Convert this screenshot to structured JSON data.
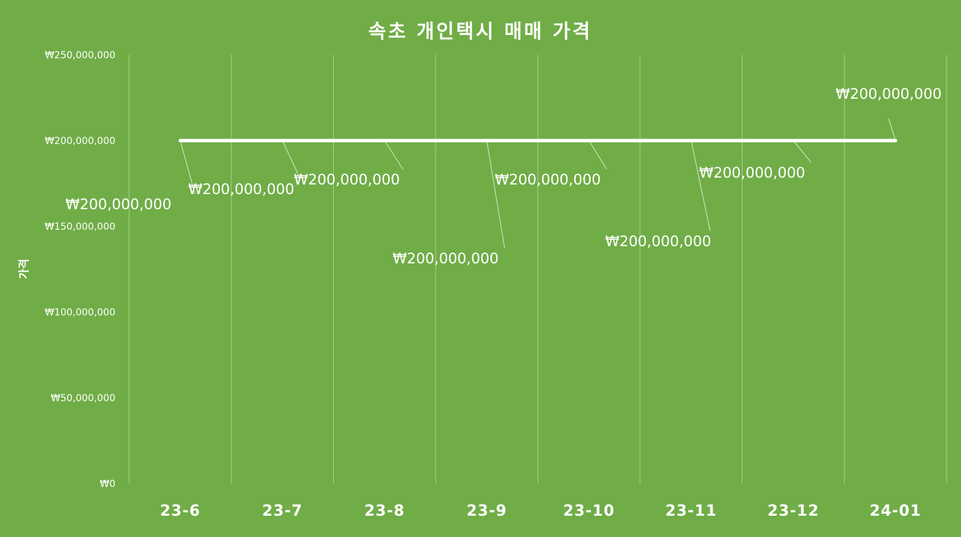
{
  "chart_data": {
    "type": "line",
    "title": "속초 개인택시 매매 가격",
    "ylabel": "가격",
    "xlabel": "",
    "categories": [
      "23-6",
      "23-7",
      "23-8",
      "23-9",
      "23-10",
      "23-11",
      "23-12",
      "24-01"
    ],
    "series": [
      {
        "values": [
          200000000,
          200000000,
          200000000,
          200000000,
          200000000,
          200000000,
          200000000,
          200000000
        ]
      }
    ],
    "data_labels": [
      "₩200,000,000",
      "₩200,000,000",
      "₩200,000,000",
      "₩200,000,000",
      "₩200,000,000",
      "₩200,000,000",
      "₩200,000,000",
      "₩200,000,000"
    ],
    "ylim": [
      0,
      250000000
    ],
    "y_ticks": [
      0,
      50000000,
      100000000,
      150000000,
      200000000,
      250000000
    ],
    "y_tick_labels": [
      "₩0",
      "₩50,000,000",
      "₩100,000,000",
      "₩150,000,000",
      "₩200,000,000",
      "₩250,000,000"
    ],
    "grid": "vertical",
    "legend": "none",
    "colors": {
      "background": "#70ad47",
      "line": "#ffffff",
      "text": "#ffffff",
      "grid": "#a9cf8e"
    }
  }
}
